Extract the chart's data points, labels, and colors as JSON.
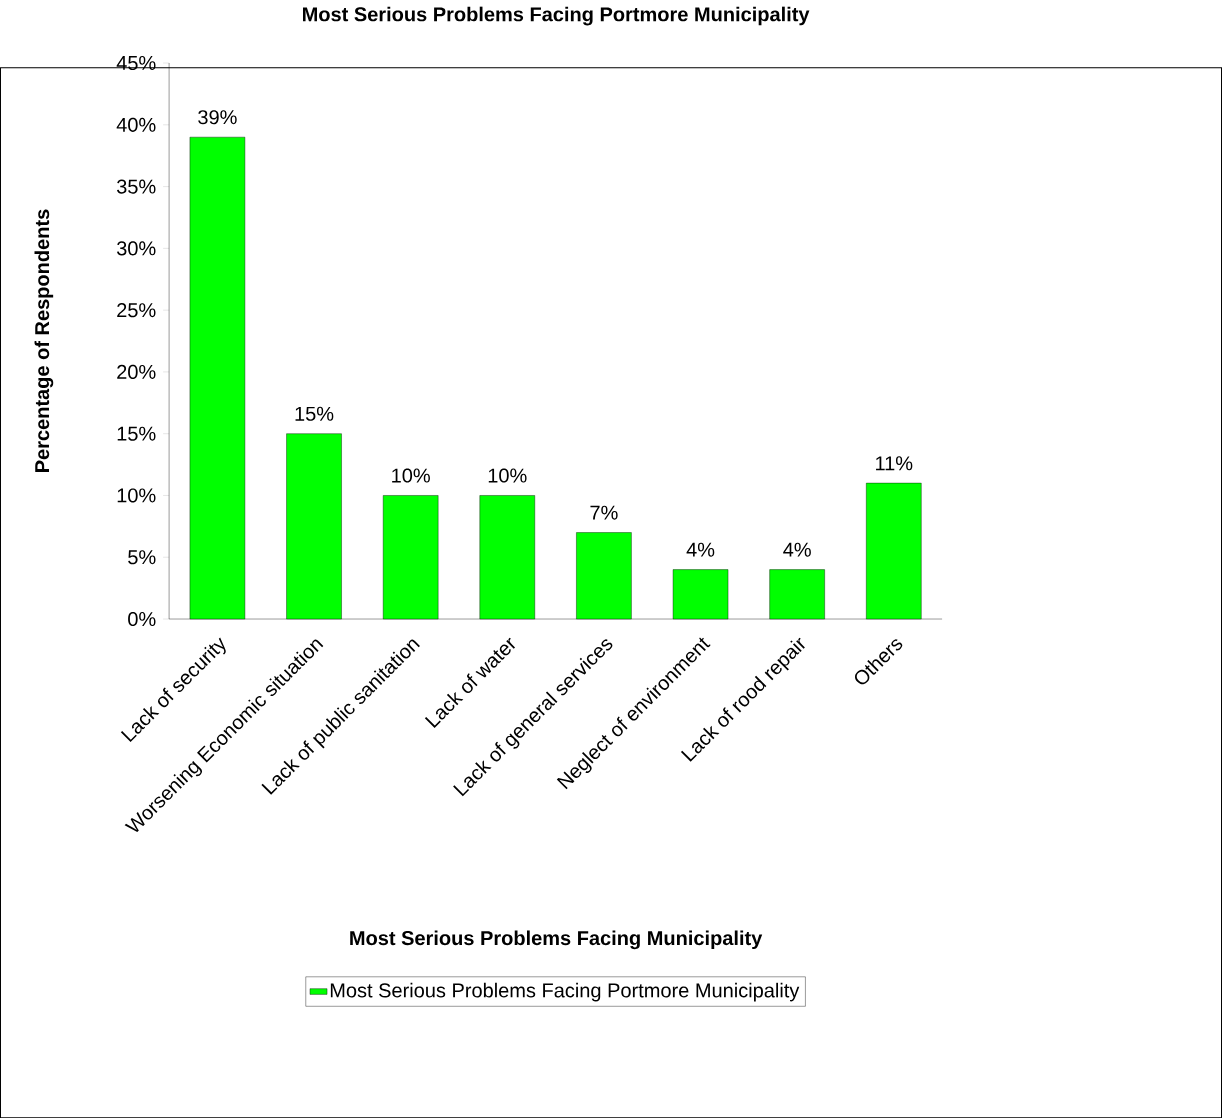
{
  "chart_data": {
    "type": "bar",
    "title": "Most Serious Problems Facing Portmore Municipality",
    "xlabel": "Most Serious Problems Facing Municipality",
    "ylabel": "Percentage of Respondents",
    "categories": [
      "Lack of security",
      "Worsening Economic situation",
      "Lack of public sanitation",
      "Lack of water",
      "Lack of general services",
      "Neglect of environment",
      "Lack of rood repair",
      "Others"
    ],
    "series": [
      {
        "name": "Most Serious Problems Facing Portmore Municipality",
        "color": "#00ff00",
        "values": [
          39,
          15,
          10,
          10,
          7,
          4,
          4,
          11
        ],
        "value_labels": [
          "39%",
          "15%",
          "10%",
          "10%",
          "7%",
          "4%",
          "4%",
          "11%"
        ]
      }
    ],
    "ylim": [
      0,
      45
    ],
    "yticks": [
      {
        "value": 0,
        "label": "0%"
      },
      {
        "value": 5,
        "label": "5%"
      },
      {
        "value": 10,
        "label": "10%"
      },
      {
        "value": 15,
        "label": "15%"
      },
      {
        "value": 20,
        "label": "20%"
      },
      {
        "value": 25,
        "label": "25%"
      },
      {
        "value": 30,
        "label": "30%"
      },
      {
        "value": 35,
        "label": "35%"
      },
      {
        "value": 40,
        "label": "40%"
      },
      {
        "value": 45,
        "label": "45%"
      }
    ],
    "grid": false,
    "legend": "bottom"
  }
}
